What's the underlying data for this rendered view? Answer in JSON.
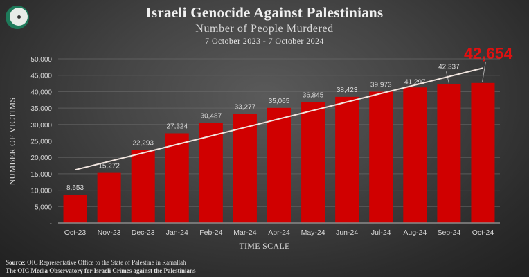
{
  "header": {
    "title": "Israeli Genocide Against Palestinians",
    "subtitle": "Number  of People Murdered",
    "date_range": "7 October  2023 - 7 October  2024",
    "logo_icon": "oic-logo-icon"
  },
  "highlight": {
    "value": "42,654",
    "color": "#e01010"
  },
  "footer": {
    "source_label": "Source",
    "source_text": ": OIC Representative Office to the State of Palestine in Ramallah",
    "line2": "The OIC Media Observatory  for Israeli Crimes against the Palestinians"
  },
  "colors": {
    "bar": "#d00000",
    "trendline": "#f2e6e0",
    "gridline": "#6a6a6a",
    "axis_text": "#d8d8d8"
  },
  "chart_data": {
    "type": "bar",
    "title": "Israeli Genocide Against Palestinians",
    "subtitle": "Number of People Murdered, 7 October 2023 - 7 October 2024",
    "xlabel": "TIME SCALE",
    "ylabel": "NUMBER OF VICTIMS",
    "categories": [
      "Oct-23",
      "Nov-23",
      "Dec-23",
      "Jan-24",
      "Feb-24",
      "Mar-24",
      "Apr-24",
      "May-24",
      "Jun-24",
      "Jul-24",
      "Aug-24",
      "Sep-24",
      "Oct-24"
    ],
    "values": [
      8653,
      15272,
      22293,
      27324,
      30487,
      33277,
      35065,
      36845,
      38423,
      39973,
      41297,
      42337,
      42654
    ],
    "data_labels": [
      "8,653",
      "15,272",
      "22,293",
      "27,324",
      "30,487",
      "33,277",
      "35,065",
      "36,845",
      "38,423",
      "39,973",
      "41,297",
      "42,337",
      "42,654"
    ],
    "ylim": [
      0,
      50000
    ],
    "yticks": [
      0,
      5000,
      10000,
      15000,
      20000,
      25000,
      30000,
      35000,
      40000,
      45000,
      50000
    ],
    "ytick_labels": [
      "-",
      "5,000",
      "10,000",
      "15,000",
      "20,000",
      "25,000",
      "30,000",
      "35,000",
      "40,000",
      "45,000",
      "50,000"
    ],
    "grid": true,
    "legend": null,
    "annotations": [
      {
        "type": "linear-trendline",
        "from": "Oct-23",
        "to": "Oct-24",
        "start_value": 16200,
        "end_value": 47200
      },
      {
        "type": "callout",
        "target": "Oct-24",
        "text": "42,654",
        "color": "#e01010"
      }
    ]
  }
}
